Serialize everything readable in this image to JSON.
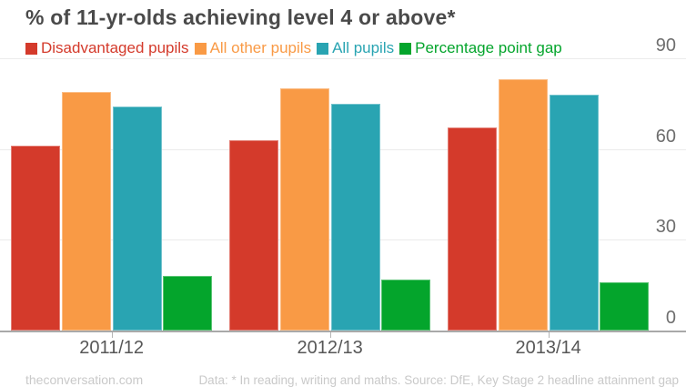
{
  "title": "% of 11-yr-olds achieving level 4 or above*",
  "chart_data": {
    "type": "bar",
    "title": "% of 11-yr-olds achieving level 4 or above*",
    "categories": [
      "2011/12",
      "2012/13",
      "2013/14"
    ],
    "series": [
      {
        "name": "Disadvantaged pupils",
        "color": "#d43a2b",
        "values": [
          61,
          63,
          67
        ]
      },
      {
        "name": "All other pupils",
        "color": "#f99a45",
        "values": [
          79,
          80,
          83
        ]
      },
      {
        "name": "All pupils",
        "color": "#29a4b2",
        "values": [
          74,
          75,
          78
        ]
      },
      {
        "name": "Percentage point gap",
        "color": "#04a52c",
        "values": [
          18,
          17,
          16
        ]
      }
    ],
    "xlabel": "",
    "ylabel": "",
    "ylim": [
      0,
      90
    ],
    "yticks": [
      0,
      30,
      60,
      90
    ],
    "y_axis_side": "right",
    "grid": true,
    "legend_position": "top-left"
  },
  "footer": {
    "source_left": "theconversation.com",
    "source_right": "Data: * In reading, writing and maths. Source: DfE, Key Stage 2 headline attainment gap"
  }
}
